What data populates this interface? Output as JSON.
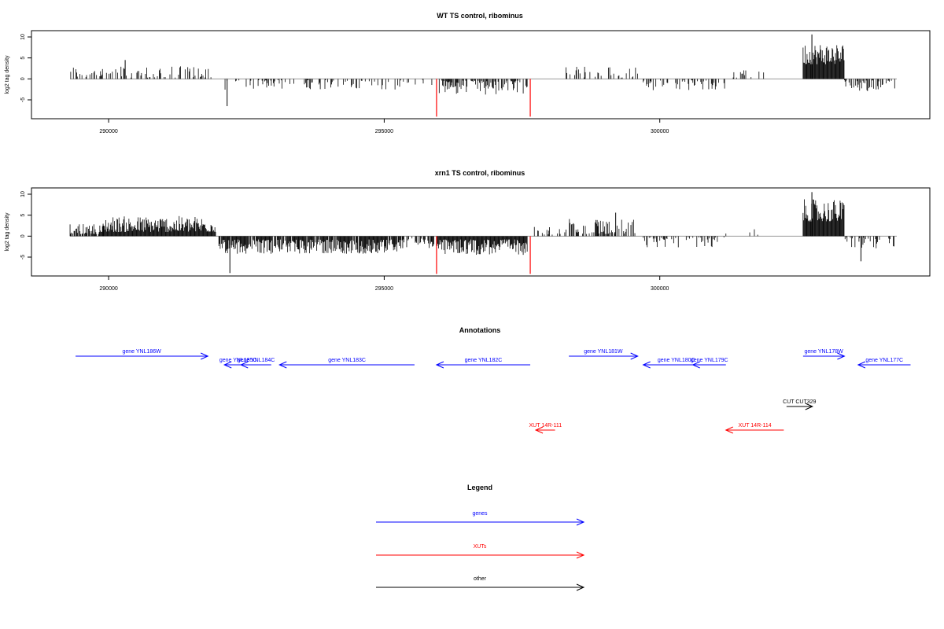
{
  "chart_data": [
    {
      "type": "bar",
      "title": "WT TS control, ribominus",
      "xlabel": "",
      "ylabel": "log2 tag density",
      "xlim": [
        288600,
        304900
      ],
      "ylim": [
        -9.5,
        11.5
      ],
      "yticks": [
        -5,
        0,
        5,
        10
      ],
      "xticks": [
        290000,
        295000,
        300000
      ],
      "xtick_labels": [
        "290000",
        "295000",
        "300000"
      ],
      "ytick_labels": [
        "-5",
        "0",
        "5",
        "10"
      ],
      "signal_range": [
        289300,
        304300
      ],
      "markers": [
        {
          "x": 295950,
          "value": -9
        },
        {
          "x": 297650,
          "value": -9
        }
      ],
      "marker_color": "#ff0000",
      "bar_color": "#000000",
      "segments": [
        {
          "x0": 289300,
          "x1": 291900,
          "sign": 1,
          "min": 0.3,
          "max": 3.2,
          "density": 0.35,
          "peak": [
            290300,
            4.5
          ]
        },
        {
          "x0": 292100,
          "x1": 295300,
          "sign": -1,
          "min": 0.3,
          "max": 2.6,
          "density": 0.3,
          "peak": [
            292150,
            -6.5
          ]
        },
        {
          "x0": 295300,
          "x1": 295900,
          "sign": -1,
          "min": 0.2,
          "max": 1.5,
          "density": 0.15
        },
        {
          "x0": 295950,
          "x1": 297600,
          "sign": -1,
          "min": 0.4,
          "max": 4.0,
          "density": 0.6
        },
        {
          "x0": 298300,
          "x1": 299600,
          "sign": 1,
          "min": 0.3,
          "max": 3.0,
          "density": 0.35
        },
        {
          "x0": 299700,
          "x1": 301200,
          "sign": -1,
          "min": 0.3,
          "max": 2.8,
          "density": 0.3
        },
        {
          "x0": 301200,
          "x1": 302500,
          "sign": 1,
          "min": 0.3,
          "max": 2.2,
          "density": 0.08
        },
        {
          "x0": 302600,
          "x1": 303350,
          "sign": 1,
          "min": 3.5,
          "max": 8.8,
          "density": 1.0,
          "peak": [
            302760,
            10.6
          ]
        },
        {
          "x0": 303350,
          "x1": 304300,
          "sign": -1,
          "min": 0.3,
          "max": 3.0,
          "density": 0.35
        }
      ]
    },
    {
      "type": "bar",
      "title": "xrn1 TS control, ribominus",
      "xlabel": "",
      "ylabel": "log2 tag density",
      "xlim": [
        288600,
        304900
      ],
      "ylim": [
        -9.5,
        11.5
      ],
      "yticks": [
        -5,
        0,
        5,
        10
      ],
      "xticks": [
        290000,
        295000,
        300000
      ],
      "xtick_labels": [
        "290000",
        "295000",
        "300000"
      ],
      "ytick_labels": [
        "-5",
        "0",
        "5",
        "10"
      ],
      "signal_range": [
        289300,
        304300
      ],
      "markers": [
        {
          "x": 295950,
          "value": -9
        },
        {
          "x": 297650,
          "value": -9
        }
      ],
      "marker_color": "#ff0000",
      "bar_color": "#000000",
      "segments": [
        {
          "x0": 289300,
          "x1": 289900,
          "sign": 1,
          "min": 0.5,
          "max": 3.0,
          "density": 0.8
        },
        {
          "x0": 289900,
          "x1": 291950,
          "sign": 1,
          "min": 1.0,
          "max": 4.8,
          "density": 1.0
        },
        {
          "x0": 292000,
          "x1": 295300,
          "sign": -1,
          "min": 0.8,
          "max": 4.2,
          "density": 0.9,
          "peak": [
            292200,
            -8.8
          ]
        },
        {
          "x0": 295300,
          "x1": 295900,
          "sign": -1,
          "min": 0.5,
          "max": 3.0,
          "density": 0.6
        },
        {
          "x0": 295950,
          "x1": 297600,
          "sign": -1,
          "min": 0.8,
          "max": 4.5,
          "density": 1.0
        },
        {
          "x0": 297700,
          "x1": 298300,
          "sign": 1,
          "min": 0.3,
          "max": 2.2,
          "density": 0.2
        },
        {
          "x0": 298300,
          "x1": 299600,
          "sign": 1,
          "min": 0.5,
          "max": 4.2,
          "density": 0.5,
          "peak": [
            299200,
            5.6
          ]
        },
        {
          "x0": 299700,
          "x1": 301200,
          "sign": -1,
          "min": 0.3,
          "max": 2.8,
          "density": 0.35
        },
        {
          "x0": 301200,
          "x1": 302500,
          "sign": 1,
          "min": 0.3,
          "max": 2.2,
          "density": 0.08
        },
        {
          "x0": 302600,
          "x1": 303350,
          "sign": 1,
          "min": 3.5,
          "max": 8.8,
          "density": 1.0,
          "peak": [
            302760,
            10.5
          ]
        },
        {
          "x0": 303350,
          "x1": 304300,
          "sign": -1,
          "min": 0.3,
          "max": 3.0,
          "density": 0.4,
          "peak": [
            303650,
            -6.0
          ]
        }
      ]
    }
  ],
  "annotations": {
    "title": "Annotations",
    "xlim": [
      288600,
      304900
    ],
    "colors": {
      "gene": "#0000ff",
      "xut": "#ff0000",
      "other": "#000000"
    },
    "features": [
      {
        "label": "gene YNL186W",
        "start": 289400,
        "end": 291800,
        "strand": "+",
        "kind": "gene",
        "row": 0
      },
      {
        "label": "gene YNL185C",
        "start": 292100,
        "end": 292600,
        "strand": "-",
        "kind": "gene",
        "row": 1
      },
      {
        "label": "gene YNL184C",
        "start": 292400,
        "end": 292950,
        "strand": "-",
        "kind": "gene",
        "row": 1
      },
      {
        "label": "gene YNL183C",
        "start": 293100,
        "end": 295550,
        "strand": "-",
        "kind": "gene",
        "row": 1
      },
      {
        "label": "gene YNL182C",
        "start": 295950,
        "end": 297650,
        "strand": "-",
        "kind": "gene",
        "row": 1
      },
      {
        "label": "gene YNL181W",
        "start": 298350,
        "end": 299600,
        "strand": "+",
        "kind": "gene",
        "row": 0
      },
      {
        "label": "gene YNL180C",
        "start": 299700,
        "end": 300900,
        "strand": "-",
        "kind": "gene",
        "row": 1
      },
      {
        "label": "gene YNL179C",
        "start": 300600,
        "end": 301200,
        "strand": "-",
        "kind": "gene",
        "row": 1
      },
      {
        "label": "gene YNL178W",
        "start": 302600,
        "end": 303350,
        "strand": "+",
        "kind": "gene",
        "row": 0
      },
      {
        "label": "gene YNL177C",
        "start": 303600,
        "end": 304550,
        "strand": "-",
        "kind": "gene",
        "row": 1
      },
      {
        "label": "CUT CUT329",
        "start": 302300,
        "end": 302770,
        "strand": "+",
        "kind": "other",
        "row": 2
      },
      {
        "label": "XUT 14R-111",
        "start": 297750,
        "end": 298100,
        "strand": "-",
        "kind": "xut",
        "row": 3
      },
      {
        "label": "XUT 14R-114",
        "start": 301200,
        "end": 302250,
        "strand": "-",
        "kind": "xut",
        "row": 3
      }
    ]
  },
  "legend": {
    "title": "Legend",
    "items": [
      {
        "label": "genes",
        "color": "#0000ff"
      },
      {
        "label": "XUTs",
        "color": "#ff0000"
      },
      {
        "label": "other",
        "color": "#000000"
      }
    ]
  }
}
